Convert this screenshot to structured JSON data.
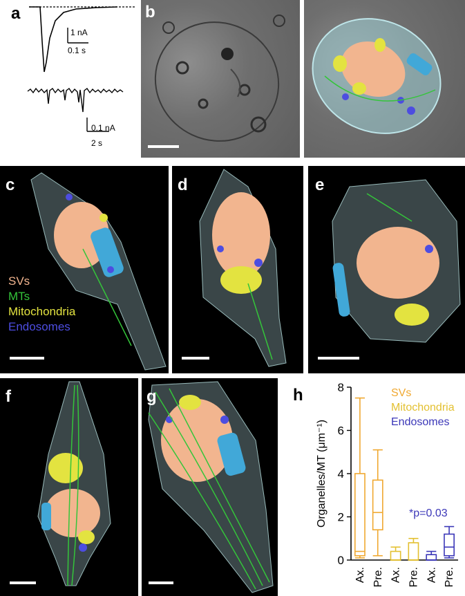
{
  "panels": {
    "a": {
      "label": "a",
      "scale1_y": "1 nA",
      "scale1_x": "0.1 s",
      "scale2_y": "0.1 nA",
      "scale2_x": "2 s"
    },
    "b": {
      "label": "b"
    },
    "c": {
      "label": "c"
    },
    "d": {
      "label": "d"
    },
    "e": {
      "label": "e"
    },
    "f": {
      "label": "f"
    },
    "g": {
      "label": "g"
    },
    "h": {
      "label": "h"
    }
  },
  "legend_c": {
    "svs": "SVs",
    "mts": "MTs",
    "mito": "Mitochondria",
    "endo": "Endosomes",
    "colors": {
      "svs": "#f2b58f",
      "mts": "#34c53a",
      "mito": "#e3e340",
      "endo": "#4d4de0"
    }
  },
  "chart_data": {
    "type": "box",
    "ylabel": "Organelles/MT (μm⁻¹)",
    "ylim": [
      0,
      8
    ],
    "yticks": [
      0,
      2,
      4,
      6,
      8
    ],
    "categories": [
      "Ax.",
      "Pre.",
      "Ax.",
      "Pre.",
      "Ax.",
      "Pre."
    ],
    "legend": [
      "SVs",
      "Mitochondria",
      "Endosomes"
    ],
    "annotation": "*p=0.03",
    "colors": {
      "SVs": "#f0a830",
      "Mitochondria": "#e3c030",
      "Endosomes": "#3b37b8"
    },
    "series": [
      {
        "name": "SVs",
        "boxes": [
          {
            "cat": "Ax.",
            "min": 0.1,
            "q1": 0.2,
            "median": 0.4,
            "q3": 4.0,
            "max": 7.5
          },
          {
            "cat": "Pre.",
            "min": 0.2,
            "q1": 1.4,
            "median": 2.2,
            "q3": 3.7,
            "max": 5.1
          }
        ]
      },
      {
        "name": "Mitochondria",
        "boxes": [
          {
            "cat": "Ax.",
            "min": 0.0,
            "q1": 0.0,
            "median": 0.0,
            "q3": 0.4,
            "max": 0.6
          },
          {
            "cat": "Pre.",
            "min": 0.0,
            "q1": 0.0,
            "median": 0.0,
            "q3": 0.8,
            "max": 1.0
          }
        ]
      },
      {
        "name": "Endosomes",
        "boxes": [
          {
            "cat": "Ax.",
            "min": 0.0,
            "q1": 0.0,
            "median": 0.0,
            "q3": 0.25,
            "max": 0.4
          },
          {
            "cat": "Pre.",
            "min": 0.1,
            "q1": 0.2,
            "median": 0.6,
            "q3": 1.2,
            "max": 1.55
          }
        ]
      }
    ]
  }
}
